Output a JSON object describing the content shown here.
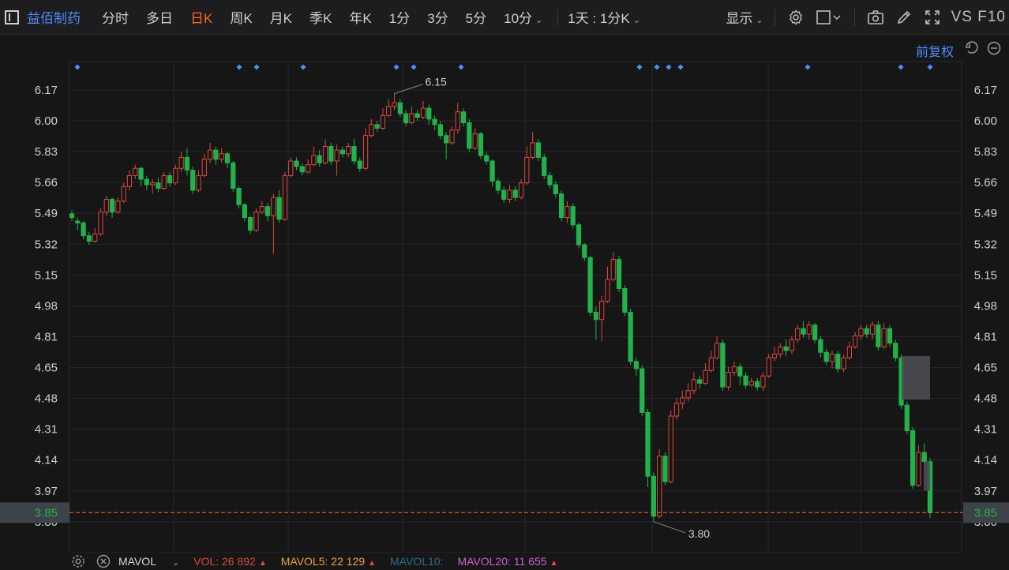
{
  "toolbar": {
    "stock_name": "益佰制药",
    "timeframes": [
      "分时",
      "多日",
      "日K",
      "周K",
      "月K",
      "季K",
      "年K",
      "1分",
      "3分",
      "5分",
      "10分"
    ],
    "active_index": 2,
    "interval_select": "1天 : 1分K",
    "display_label": "显示",
    "vs_label": "VS F10"
  },
  "subbar": {
    "adjust_label": "前复权"
  },
  "price_axis": {
    "ticks": [
      "6.17",
      "6.00",
      "5.83",
      "5.66",
      "5.49",
      "5.32",
      "5.15",
      "4.98",
      "4.81",
      "4.65",
      "4.48",
      "4.31",
      "4.14",
      "3.97",
      "3.80"
    ],
    "current_price": "3.85"
  },
  "annotations": {
    "high_label": "6.15",
    "low_label": "3.80"
  },
  "volume_bar": {
    "indicator": "MAVOL",
    "vol_label": "VOL:",
    "vol_value": "26 892",
    "mavol5_label": "MAVOL5:",
    "mavol5_value": "22 129",
    "mavol10_label": "MAVOL10:",
    "mavol20_label": "MAVOL20:",
    "mavol20_value": "11 655"
  },
  "colors": {
    "up": "#e0483d",
    "down": "#21b24b",
    "accent": "#ff6a1f",
    "link": "#4f8cff",
    "price_line": "#f06d3c",
    "mavol5": "#f3a23a",
    "mavol10": "#2f6d86",
    "mavol20": "#d25cd9"
  },
  "chart_data": {
    "type": "candlestick",
    "y_range": [
      3.8,
      6.17
    ],
    "current_price": 3.85,
    "high": 6.15,
    "low": 3.8,
    "candles": [
      [
        5.49,
        5.47,
        5.51,
        5.45
      ],
      [
        5.45,
        5.44,
        5.47,
        5.4
      ],
      [
        5.44,
        5.37,
        5.45,
        5.35
      ],
      [
        5.37,
        5.34,
        5.39,
        5.32
      ],
      [
        5.34,
        5.38,
        5.41,
        5.33
      ],
      [
        5.38,
        5.5,
        5.52,
        5.37
      ],
      [
        5.5,
        5.57,
        5.59,
        5.48
      ],
      [
        5.57,
        5.5,
        5.58,
        5.47
      ],
      [
        5.5,
        5.56,
        5.58,
        5.49
      ],
      [
        5.56,
        5.64,
        5.66,
        5.55
      ],
      [
        5.64,
        5.7,
        5.73,
        5.62
      ],
      [
        5.7,
        5.74,
        5.76,
        5.68
      ],
      [
        5.74,
        5.68,
        5.75,
        5.64
      ],
      [
        5.68,
        5.65,
        5.7,
        5.62
      ],
      [
        5.65,
        5.66,
        5.68,
        5.6
      ],
      [
        5.66,
        5.63,
        5.69,
        5.61
      ],
      [
        5.63,
        5.7,
        5.72,
        5.62
      ],
      [
        5.7,
        5.66,
        5.72,
        5.64
      ],
      [
        5.66,
        5.74,
        5.76,
        5.65
      ],
      [
        5.74,
        5.8,
        5.83,
        5.72
      ],
      [
        5.8,
        5.73,
        5.85,
        5.7
      ],
      [
        5.73,
        5.62,
        5.75,
        5.6
      ],
      [
        5.62,
        5.7,
        5.73,
        5.61
      ],
      [
        5.7,
        5.79,
        5.82,
        5.69
      ],
      [
        5.79,
        5.84,
        5.88,
        5.77
      ],
      [
        5.84,
        5.79,
        5.86,
        5.76
      ],
      [
        5.79,
        5.82,
        5.85,
        5.77
      ],
      [
        5.82,
        5.77,
        5.83,
        5.74
      ],
      [
        5.77,
        5.63,
        5.78,
        5.61
      ],
      [
        5.63,
        5.54,
        5.64,
        5.52
      ],
      [
        5.54,
        5.47,
        5.55,
        5.45
      ],
      [
        5.47,
        5.4,
        5.48,
        5.38
      ],
      [
        5.4,
        5.5,
        5.52,
        5.39
      ],
      [
        5.5,
        5.53,
        5.56,
        5.49
      ],
      [
        5.53,
        5.48,
        5.55,
        5.45
      ],
      [
        5.48,
        5.58,
        5.6,
        5.27
      ],
      [
        5.58,
        5.46,
        5.62,
        5.44
      ],
      [
        5.46,
        5.7,
        5.72,
        5.45
      ],
      [
        5.7,
        5.78,
        5.8,
        5.69
      ],
      [
        5.78,
        5.75,
        5.8,
        5.73
      ],
      [
        5.75,
        5.72,
        5.77,
        5.7
      ],
      [
        5.72,
        5.76,
        5.79,
        5.71
      ],
      [
        5.76,
        5.81,
        5.86,
        5.75
      ],
      [
        5.81,
        5.77,
        5.84,
        5.75
      ],
      [
        5.77,
        5.86,
        5.9,
        5.76
      ],
      [
        5.86,
        5.78,
        5.88,
        5.76
      ],
      [
        5.78,
        5.84,
        5.87,
        5.7
      ],
      [
        5.84,
        5.82,
        5.86,
        5.8
      ],
      [
        5.82,
        5.86,
        5.88,
        5.8
      ],
      [
        5.86,
        5.78,
        5.9,
        5.76
      ],
      [
        5.78,
        5.74,
        5.8,
        5.72
      ],
      [
        5.74,
        5.92,
        5.96,
        5.73
      ],
      [
        5.92,
        5.98,
        6.01,
        5.91
      ],
      [
        5.98,
        5.96,
        6.0,
        5.94
      ],
      [
        5.96,
        6.03,
        6.07,
        5.95
      ],
      [
        6.03,
        6.08,
        6.12,
        6.02
      ],
      [
        6.08,
        6.1,
        6.15,
        6.06
      ],
      [
        6.1,
        6.04,
        6.12,
        6.02
      ],
      [
        6.04,
        5.99,
        6.06,
        5.97
      ],
      [
        5.99,
        6.04,
        6.08,
        5.98
      ],
      [
        6.04,
        6.02,
        6.06,
        6.0
      ],
      [
        6.02,
        6.07,
        6.11,
        6.01
      ],
      [
        6.07,
        6.01,
        6.09,
        5.98
      ],
      [
        6.01,
        5.98,
        6.03,
        5.95
      ],
      [
        5.98,
        5.92,
        6.0,
        5.9
      ],
      [
        5.92,
        5.88,
        5.94,
        5.79
      ],
      [
        5.88,
        5.95,
        5.97,
        5.87
      ],
      [
        5.95,
        6.05,
        6.1,
        5.93
      ],
      [
        6.05,
        5.99,
        6.07,
        5.97
      ],
      [
        5.99,
        5.85,
        6.01,
        5.83
      ],
      [
        5.85,
        5.93,
        5.96,
        5.84
      ],
      [
        5.93,
        5.81,
        5.94,
        5.79
      ],
      [
        5.81,
        5.78,
        5.83,
        5.76
      ],
      [
        5.78,
        5.67,
        5.79,
        5.64
      ],
      [
        5.67,
        5.62,
        5.69,
        5.6
      ],
      [
        5.62,
        5.57,
        5.64,
        5.55
      ],
      [
        5.57,
        5.62,
        5.65,
        5.55
      ],
      [
        5.62,
        5.58,
        5.64,
        5.56
      ],
      [
        5.58,
        5.66,
        5.68,
        5.57
      ],
      [
        5.66,
        5.8,
        5.86,
        5.65
      ],
      [
        5.8,
        5.88,
        5.94,
        5.79
      ],
      [
        5.88,
        5.8,
        5.9,
        5.78
      ],
      [
        5.8,
        5.7,
        5.82,
        5.68
      ],
      [
        5.7,
        5.65,
        5.72,
        5.63
      ],
      [
        5.65,
        5.6,
        5.67,
        5.58
      ],
      [
        5.6,
        5.47,
        5.62,
        5.45
      ],
      [
        5.47,
        5.53,
        5.56,
        5.44
      ],
      [
        5.53,
        5.43,
        5.55,
        5.41
      ],
      [
        5.43,
        5.32,
        5.44,
        5.3
      ],
      [
        5.32,
        5.25,
        5.33,
        5.23
      ],
      [
        5.25,
        4.95,
        5.26,
        4.93
      ],
      [
        4.95,
        4.91,
        4.98,
        4.8
      ],
      [
        4.91,
        5.01,
        5.04,
        4.79
      ],
      [
        5.01,
        5.13,
        5.2,
        5.0
      ],
      [
        5.13,
        5.24,
        5.28,
        5.12
      ],
      [
        5.24,
        5.08,
        5.26,
        5.06
      ],
      [
        5.08,
        4.95,
        5.1,
        4.93
      ],
      [
        4.95,
        4.68,
        4.97,
        4.66
      ],
      [
        4.68,
        4.64,
        4.7,
        4.6
      ],
      [
        4.64,
        4.4,
        4.66,
        4.38
      ],
      [
        4.4,
        4.05,
        4.42,
        3.99
      ],
      [
        4.05,
        3.83,
        4.07,
        3.8
      ],
      [
        3.83,
        4.16,
        4.2,
        3.82
      ],
      [
        4.16,
        4.02,
        4.18,
        4.0
      ],
      [
        4.02,
        4.38,
        4.41,
        4.01
      ],
      [
        4.38,
        4.45,
        4.48,
        4.36
      ],
      [
        4.45,
        4.48,
        4.52,
        4.42
      ],
      [
        4.48,
        4.52,
        4.56,
        4.46
      ],
      [
        4.52,
        4.58,
        4.62,
        4.5
      ],
      [
        4.58,
        4.56,
        4.6,
        4.53
      ],
      [
        4.56,
        4.63,
        4.67,
        4.55
      ],
      [
        4.63,
        4.7,
        4.74,
        4.62
      ],
      [
        4.7,
        4.78,
        4.82,
        4.69
      ],
      [
        4.78,
        4.54,
        4.8,
        4.52
      ],
      [
        4.54,
        4.62,
        4.65,
        4.52
      ],
      [
        4.62,
        4.65,
        4.68,
        4.6
      ],
      [
        4.65,
        4.6,
        4.67,
        4.55
      ],
      [
        4.6,
        4.55,
        4.62,
        4.53
      ],
      [
        4.55,
        4.57,
        4.59,
        4.54
      ],
      [
        4.57,
        4.54,
        4.59,
        4.52
      ],
      [
        4.54,
        4.6,
        4.62,
        4.52
      ],
      [
        4.6,
        4.7,
        4.72,
        4.59
      ],
      [
        4.7,
        4.72,
        4.76,
        4.68
      ],
      [
        4.72,
        4.76,
        4.78,
        4.7
      ],
      [
        4.76,
        4.74,
        4.8,
        4.71
      ],
      [
        4.74,
        4.8,
        4.82,
        4.72
      ],
      [
        4.8,
        4.86,
        4.88,
        4.78
      ],
      [
        4.86,
        4.83,
        4.9,
        4.81
      ],
      [
        4.83,
        4.88,
        4.9,
        4.8
      ],
      [
        4.88,
        4.8,
        4.89,
        4.78
      ],
      [
        4.8,
        4.73,
        4.82,
        4.7
      ],
      [
        4.73,
        4.68,
        4.75,
        4.66
      ],
      [
        4.68,
        4.72,
        4.74,
        4.64
      ],
      [
        4.72,
        4.64,
        4.74,
        4.62
      ],
      [
        4.64,
        4.7,
        4.72,
        4.62
      ],
      [
        4.7,
        4.76,
        4.79,
        4.69
      ],
      [
        4.76,
        4.82,
        4.84,
        4.75
      ],
      [
        4.82,
        4.86,
        4.88,
        4.8
      ],
      [
        4.86,
        4.83,
        4.88,
        4.81
      ],
      [
        4.83,
        4.88,
        4.9,
        4.8
      ],
      [
        4.88,
        4.76,
        4.9,
        4.74
      ],
      [
        4.76,
        4.86,
        4.89,
        4.75
      ],
      [
        4.86,
        4.78,
        4.88,
        4.76
      ],
      [
        4.78,
        4.7,
        4.8,
        4.68
      ],
      [
        4.7,
        4.44,
        4.72,
        4.42
      ],
      [
        4.44,
        4.3,
        4.46,
        4.28
      ],
      [
        4.3,
        4.0,
        4.32,
        3.98
      ],
      [
        4.0,
        4.18,
        4.22,
        3.99
      ],
      [
        4.18,
        4.13,
        4.23,
        4.11
      ],
      [
        4.13,
        3.85,
        4.15,
        3.82
      ]
    ]
  }
}
